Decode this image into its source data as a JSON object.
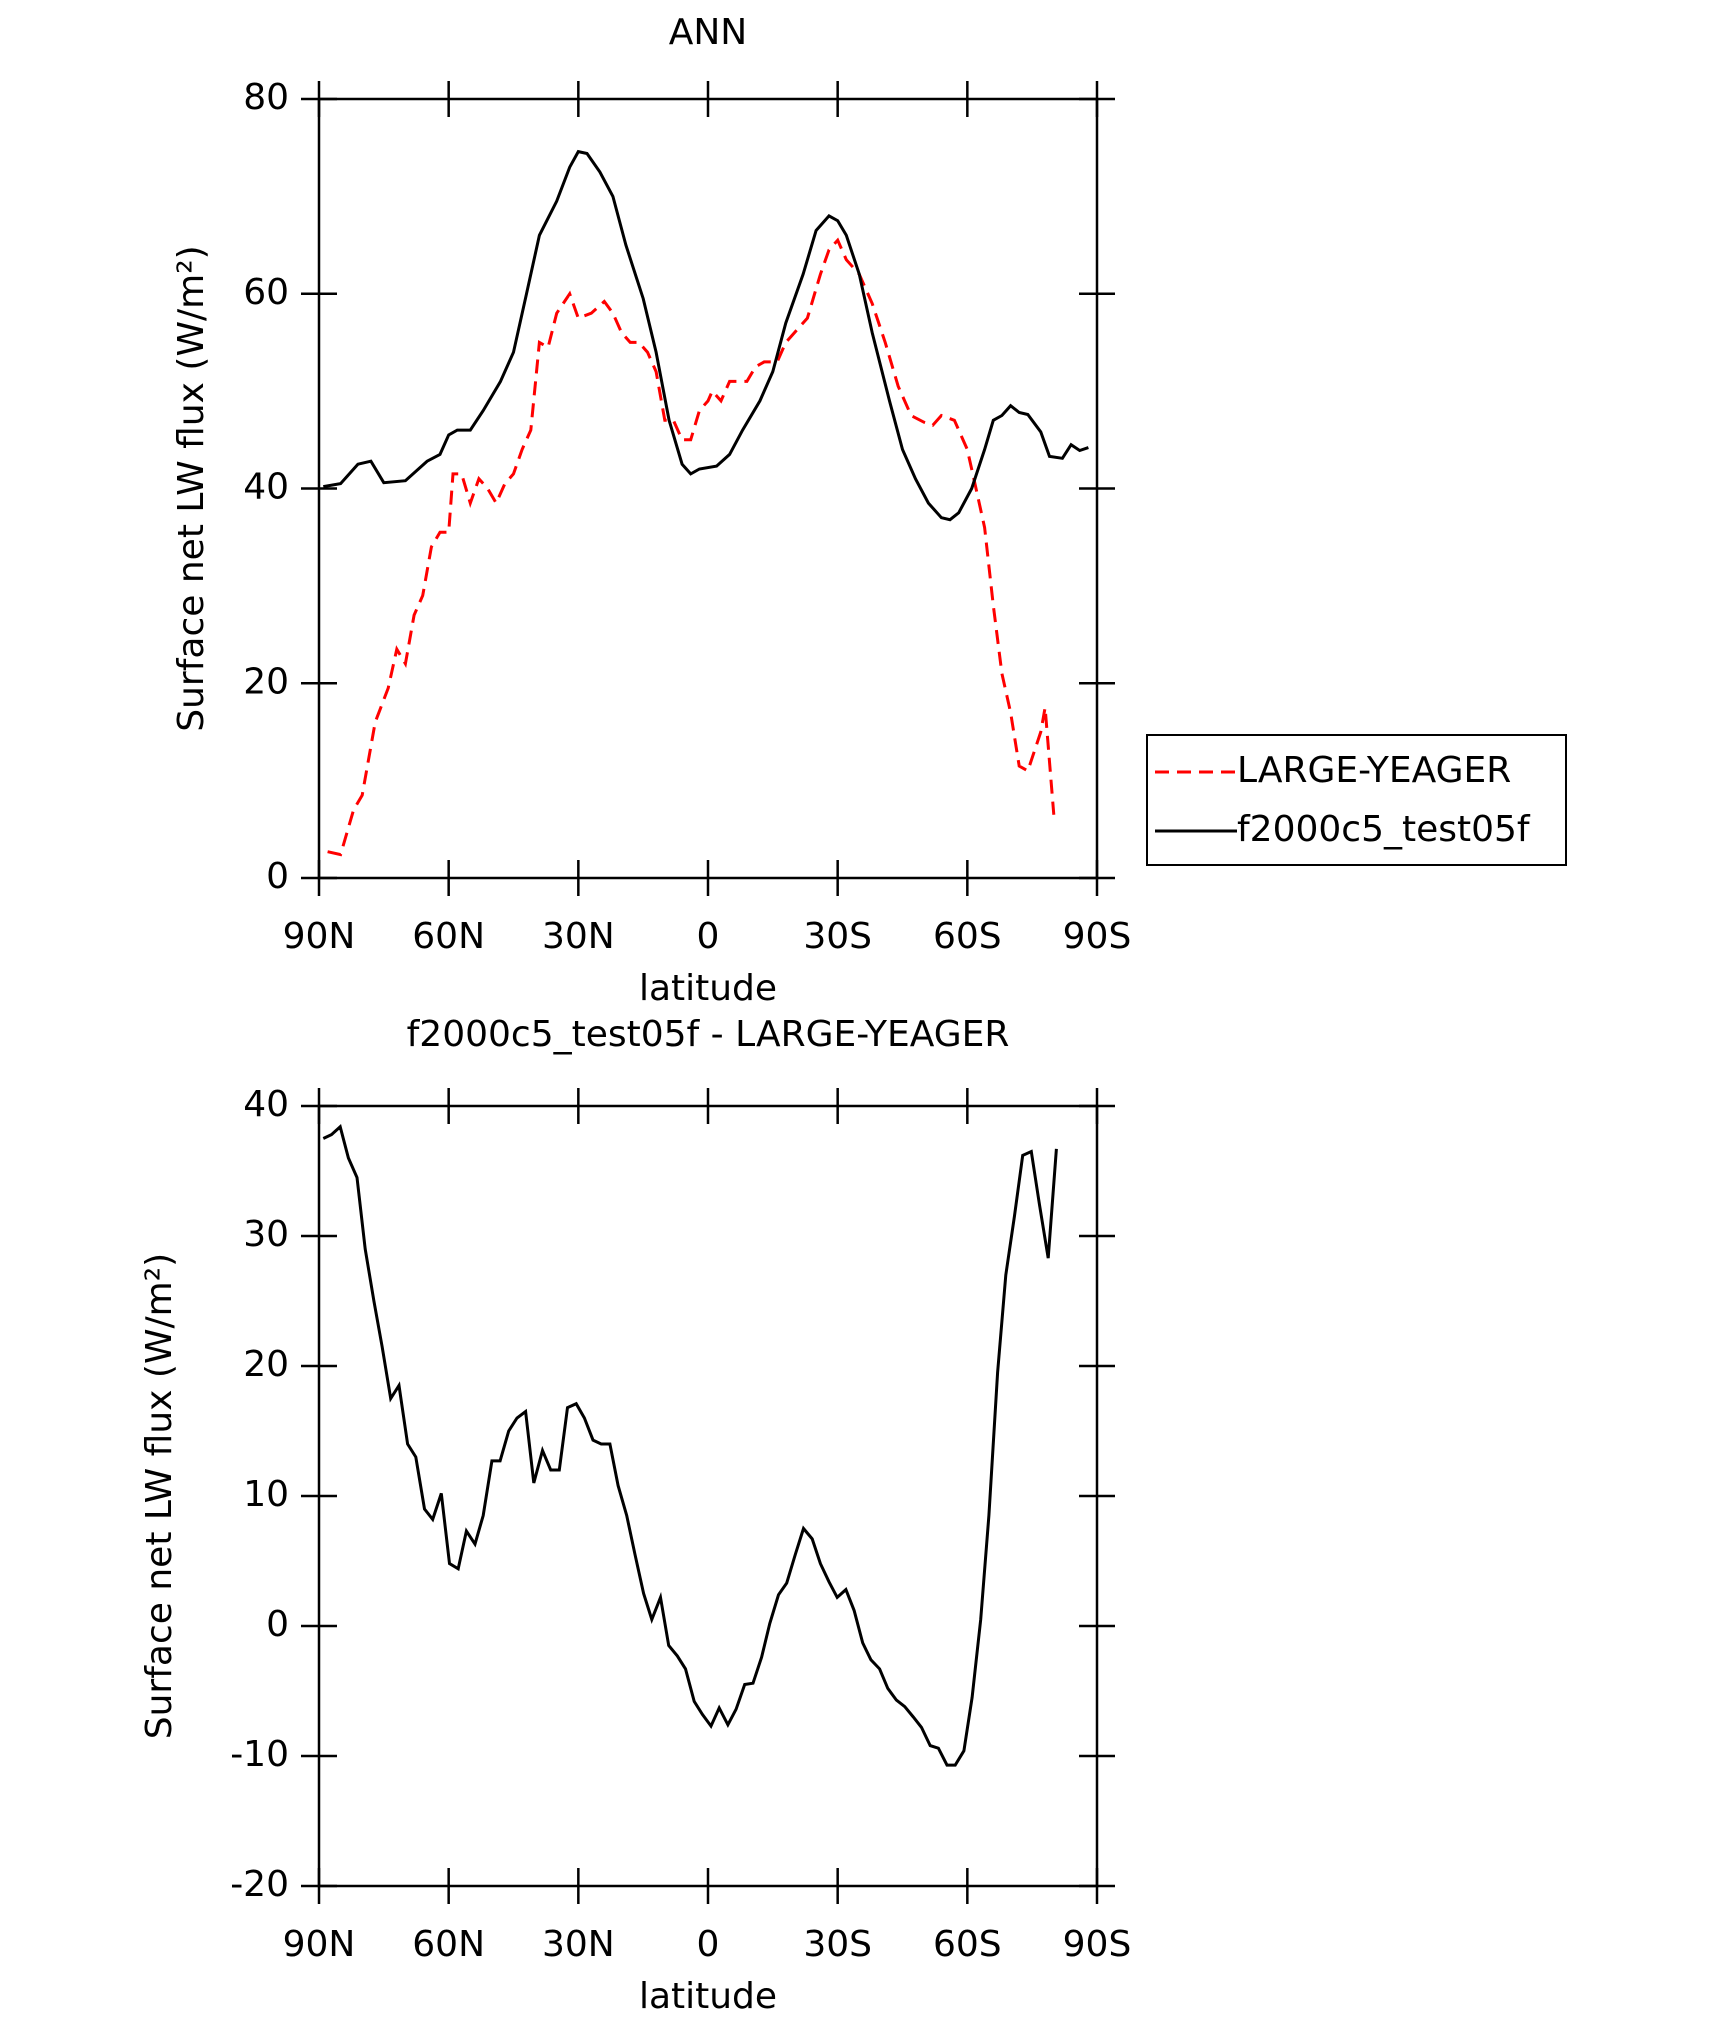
{
  "chart_data": [
    {
      "type": "line",
      "title": "ANN",
      "xlabel": "latitude",
      "ylabel": "Surface net LW flux (W/m²)",
      "xlim": [
        90,
        -90
      ],
      "ylim": [
        0,
        80
      ],
      "xticks": [
        {
          "value": 90,
          "label": "90N"
        },
        {
          "value": 60,
          "label": "60N"
        },
        {
          "value": 30,
          "label": "30N"
        },
        0,
        {
          "value": -30,
          "label": "30S"
        },
        {
          "value": -60,
          "label": "60S"
        },
        {
          "value": -90,
          "label": "90S"
        }
      ],
      "yticks": [
        0,
        20,
        40,
        60,
        80
      ],
      "legend": "right",
      "series": [
        {
          "name": "LARGE-YEAGER",
          "color": "#ff0000",
          "dash": true,
          "x": [
            88,
            85,
            82,
            80,
            77,
            74,
            72,
            70,
            68,
            66,
            64,
            62,
            60,
            59,
            57,
            55,
            53,
            51,
            49,
            47,
            45,
            43,
            41,
            39,
            37,
            35,
            32,
            30,
            27,
            24,
            22,
            20,
            18,
            16,
            14,
            12,
            10,
            8,
            6,
            4,
            2,
            0,
            -1,
            -3,
            -5,
            -7,
            -9,
            -11,
            -13,
            -16,
            -18,
            -20,
            -23,
            -26,
            -28,
            -30,
            -32,
            -35,
            -38,
            -41,
            -44,
            -47,
            -50,
            -52,
            -54,
            -57,
            -60,
            -62,
            -64,
            -66,
            -68,
            -70,
            -72,
            -74,
            -77,
            -78,
            -80
          ],
          "values": [
            2.7,
            2.4,
            7,
            8.5,
            16,
            19.5,
            23.5,
            22,
            27,
            29,
            34,
            35.5,
            35.5,
            41.5,
            41.5,
            38.5,
            41,
            40,
            38.5,
            40.5,
            41.5,
            44,
            46,
            55,
            54.5,
            58,
            60,
            57.5,
            58,
            59.2,
            58,
            56,
            55,
            55,
            54,
            52,
            47,
            47,
            45,
            45,
            48,
            49,
            50,
            49,
            51,
            51,
            51,
            52.5,
            53,
            53,
            55,
            56,
            57.5,
            62,
            64.5,
            65.5,
            63.5,
            62,
            59,
            55,
            50.5,
            47.5,
            46.8,
            46.5,
            47.5,
            47,
            44,
            40,
            36,
            28,
            21,
            17,
            11.5,
            11,
            15,
            17.5,
            6.5
          ]
        },
        {
          "name": "f2000c5_test05f",
          "color": "#000000",
          "dash": false,
          "x": [
            89,
            85,
            81,
            78,
            75,
            70,
            65,
            62,
            60,
            58,
            55,
            52,
            48,
            45,
            42,
            39,
            35,
            32,
            30,
            28,
            25,
            22,
            19,
            15,
            12,
            9,
            6,
            4,
            2,
            -2,
            -5,
            -8,
            -12,
            -15,
            -18,
            -22,
            -25,
            -28,
            -30,
            -32,
            -35,
            -38,
            -42,
            -45,
            -48,
            -51,
            -54,
            -56,
            -58,
            -61,
            -64,
            -66,
            -68,
            -70,
            -72,
            -74,
            -77,
            -79,
            -82,
            -84,
            -86,
            -88
          ],
          "values": [
            40.2,
            40.5,
            42.5,
            42.8,
            40.6,
            40.8,
            42.8,
            43.5,
            45.5,
            46,
            46,
            48,
            51,
            54,
            60,
            66,
            69.5,
            73,
            74.6,
            74.4,
            72.5,
            70,
            65,
            59.5,
            54,
            47,
            42.5,
            41.5,
            42,
            42.3,
            43.5,
            46,
            49,
            52,
            57,
            62,
            66.5,
            68,
            67.5,
            66,
            62,
            56,
            49,
            44,
            41,
            38.5,
            37,
            36.8,
            37.5,
            40,
            44,
            47,
            47.5,
            48.5,
            47.8,
            47.6,
            45.8,
            43.3,
            43.1,
            44.5,
            43.9,
            44.2
          ]
        }
      ]
    },
    {
      "type": "line",
      "title": "f2000c5_test05f - LARGE-YEAGER",
      "xlabel": "latitude",
      "ylabel": "Surface net LW flux (W/m²)",
      "xlim": [
        90,
        -90
      ],
      "ylim": [
        -20,
        40
      ],
      "xticks": [
        {
          "value": 90,
          "label": "90N"
        },
        {
          "value": 60,
          "label": "60N"
        },
        {
          "value": 30,
          "label": "30N"
        },
        0,
        {
          "value": -30,
          "label": "30S"
        },
        {
          "value": -60,
          "label": "60S"
        },
        {
          "value": -90,
          "label": "90S"
        }
      ],
      "yticks": [
        -20,
        -10,
        0,
        10,
        20,
        30,
        40
      ],
      "series": [
        {
          "color": "#000000",
          "dash": false,
          "x": [
            89,
            87.1,
            85.1,
            83.2,
            81.2,
            79.3,
            77.3,
            75.4,
            73.4,
            71.5,
            69.5,
            67.6,
            65.6,
            63.7,
            61.7,
            59.8,
            57.8,
            55.9,
            53.9,
            52,
            50,
            48.1,
            46.1,
            44.2,
            42.2,
            40.3,
            38.3,
            36.4,
            34.4,
            32.5,
            30.5,
            28.6,
            26.6,
            24.7,
            22.7,
            20.8,
            18.8,
            16.9,
            14.9,
            13,
            11,
            9.1,
            7.1,
            5.2,
            3.2,
            1.3,
            -0.7,
            -2.6,
            -4.6,
            -6.5,
            -8.5,
            -10.4,
            -12.4,
            -14.3,
            -16.3,
            -18.2,
            -20.2,
            -22.1,
            -24.1,
            -26,
            -28,
            -29.9,
            -31.9,
            -33.8,
            -35.8,
            -37.7,
            -39.7,
            -41.6,
            -43.6,
            -45.5,
            -47.5,
            -49.4,
            -51.4,
            -53.3,
            -55.3,
            -57.2,
            -59.2,
            -61.1,
            -63.1,
            -65,
            -67,
            -68.9,
            -70.9,
            -72.8,
            -74.8,
            -76.7,
            -78.7,
            -80.6
          ],
          "values": [
            37.5,
            37.8,
            38.4,
            36,
            34.5,
            29,
            25,
            21.5,
            17.5,
            18.5,
            14,
            13,
            9,
            8.2,
            10.2,
            4.8,
            4.4,
            7.3,
            6.3,
            8.5,
            12.7,
            12.7,
            15,
            16,
            16.5,
            11,
            13.5,
            12,
            12,
            16.8,
            17.1,
            16,
            14.3,
            14,
            14,
            10.8,
            8.5,
            5.5,
            2.5,
            0.5,
            2.2,
            -1.5,
            -2.3,
            -3.3,
            -5.8,
            -6.8,
            -7.7,
            -6.3,
            -7.6,
            -6.4,
            -4.5,
            -4.4,
            -2.4,
            0.2,
            2.4,
            3.3,
            5.5,
            7.5,
            6.7,
            4.8,
            3.4,
            2.2,
            2.8,
            1.2,
            -1.3,
            -2.6,
            -3.3,
            -4.8,
            -5.7,
            -6.2,
            -7,
            -7.8,
            -9.2,
            -9.4,
            -10.7,
            -10.7,
            -9.6,
            -5.5,
            0.5,
            8.5,
            19.5,
            27,
            31.5,
            36.2,
            36.5,
            32.4,
            28.3,
            36.7
          ]
        }
      ]
    }
  ]
}
